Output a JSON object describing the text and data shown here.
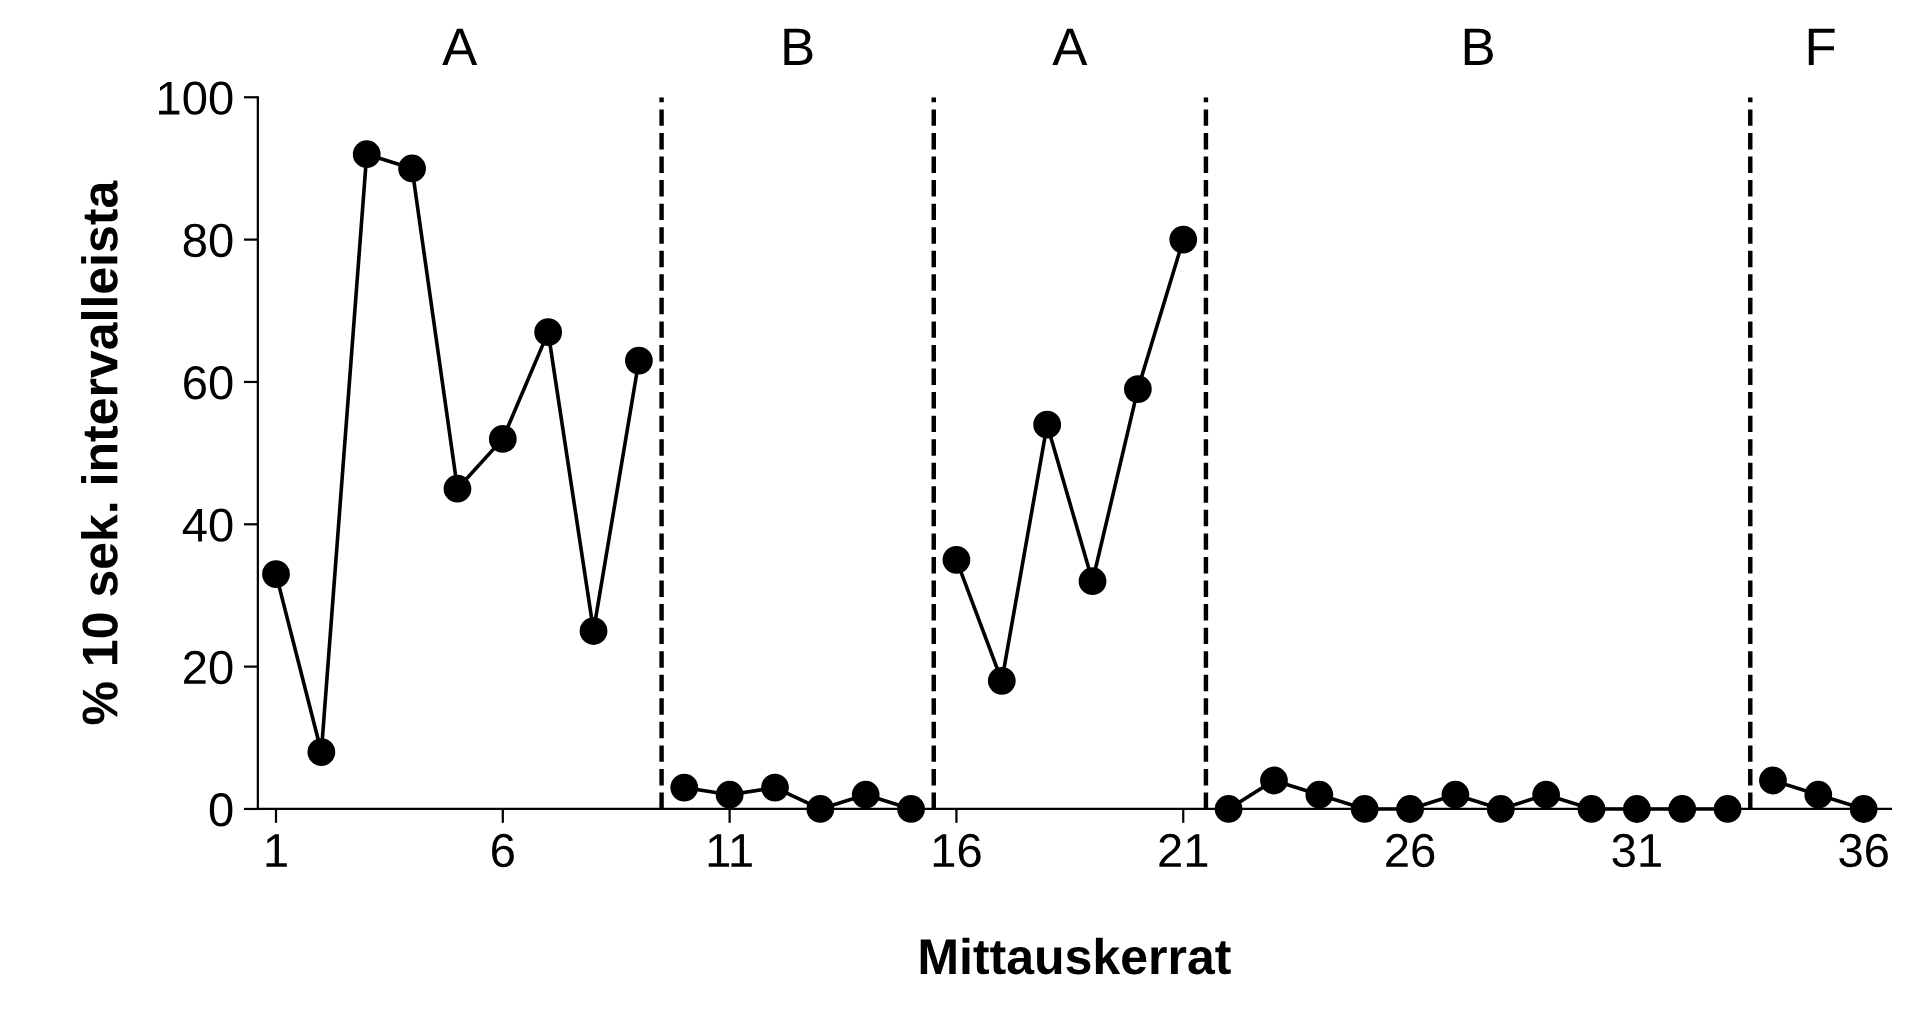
{
  "chart_data": {
    "type": "line",
    "xlabel": "Mittauskerrat",
    "ylabel": "% 10 sek. intervalleista",
    "xlim": [
      0.6,
      36.6
    ],
    "xticks": [
      1,
      6,
      11,
      16,
      21,
      26,
      31,
      36
    ],
    "ylim": [
      0,
      100
    ],
    "yticks": [
      0,
      20,
      40,
      60,
      80,
      100
    ],
    "grid": false,
    "legend": false,
    "marker": "circle",
    "line_style": "solid",
    "series": [
      {
        "color": "#000000",
        "x": [
          1,
          2,
          3,
          4,
          5,
          6,
          7,
          8,
          9
        ],
        "values": [
          33,
          8,
          92,
          90,
          45,
          52,
          67,
          25,
          63
        ]
      },
      {
        "color": "#000000",
        "x": [
          10,
          11,
          12,
          13,
          14,
          15
        ],
        "values": [
          3,
          2,
          3,
          0,
          2,
          0
        ]
      },
      {
        "color": "#000000",
        "x": [
          16,
          17,
          18,
          19,
          20,
          21
        ],
        "values": [
          35,
          18,
          54,
          32,
          59,
          80
        ]
      },
      {
        "color": "#000000",
        "x": [
          22,
          23,
          24,
          25,
          26,
          27,
          28,
          29,
          30,
          31,
          32,
          33
        ],
        "values": [
          0,
          4,
          2,
          0,
          0,
          2,
          0,
          2,
          0,
          0,
          0,
          0
        ]
      },
      {
        "color": "#000000",
        "x": [
          34,
          35,
          36
        ],
        "values": [
          4,
          2,
          0
        ]
      }
    ],
    "ref_lines": [
      {
        "axis": "x",
        "value": 9.5,
        "line_style": "dashed",
        "color": "#000000"
      },
      {
        "axis": "x",
        "value": 15.5,
        "line_style": "dashed",
        "color": "#000000"
      },
      {
        "axis": "x",
        "value": 21.5,
        "line_style": "dashed",
        "color": "#000000"
      },
      {
        "axis": "x",
        "value": 33.5,
        "line_style": "dashed",
        "color": "#000000"
      }
    ],
    "annotations": [
      "A",
      "B",
      "A",
      "B",
      "F"
    ]
  }
}
